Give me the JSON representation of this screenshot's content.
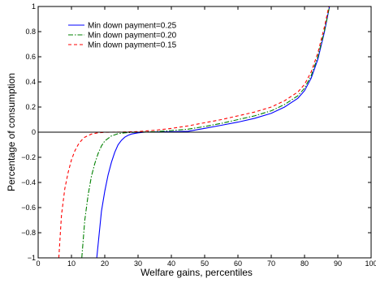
{
  "chart_data": {
    "type": "line",
    "title": "",
    "xlabel": "Welfare gains, percentiles",
    "ylabel": "Percentage of consumption",
    "xlim": [
      0,
      100
    ],
    "ylim": [
      -1,
      1
    ],
    "xticks": [
      0,
      10,
      20,
      30,
      40,
      50,
      60,
      70,
      80,
      90,
      100
    ],
    "yticks": [
      -1,
      -0.8,
      -0.6,
      -0.4,
      -0.2,
      0,
      0.2,
      0.4,
      0.6,
      0.8,
      1
    ],
    "xtick_labels": [
      "0",
      "10",
      "20",
      "30",
      "40",
      "50",
      "60",
      "70",
      "80",
      "90",
      "100"
    ],
    "ytick_labels": [
      "−1",
      "−0.8",
      "−0.6",
      "−0.4",
      "−0.2",
      "0",
      "0.2",
      "0.4",
      "0.6",
      "0.8",
      "1"
    ],
    "grid": false,
    "legend_position": "top-left",
    "zero_line": true,
    "series": [
      {
        "name": "Min down payment=0.25",
        "color": "#0000ff",
        "dash": "solid",
        "x": [
          17.6,
          19,
          20,
          21,
          22,
          23,
          24,
          25,
          26,
          27,
          28,
          30,
          32,
          35,
          40,
          45,
          50,
          55,
          60,
          65,
          70,
          74,
          78,
          80,
          82,
          84,
          86,
          87.5
        ],
        "y": [
          -1.0,
          -0.63,
          -0.47,
          -0.34,
          -0.24,
          -0.16,
          -0.1,
          -0.065,
          -0.04,
          -0.025,
          -0.015,
          -0.005,
          0.0,
          0.002,
          0.004,
          0.007,
          0.03,
          0.055,
          0.08,
          0.11,
          0.15,
          0.2,
          0.27,
          0.33,
          0.43,
          0.58,
          0.8,
          1.0
        ]
      },
      {
        "name": "Min down payment=0.20",
        "color": "#008000",
        "dash": "dashdot",
        "x": [
          13.1,
          14,
          15,
          16,
          17,
          18,
          19,
          20,
          22,
          24,
          26,
          28,
          30,
          35,
          40,
          45,
          50,
          55,
          60,
          65,
          70,
          74,
          78,
          80,
          82,
          84,
          86,
          87.5
        ],
        "y": [
          -1.0,
          -0.7,
          -0.5,
          -0.35,
          -0.25,
          -0.17,
          -0.11,
          -0.07,
          -0.03,
          -0.012,
          -0.005,
          -0.002,
          0.0,
          0.004,
          0.013,
          0.024,
          0.045,
          0.07,
          0.1,
          0.13,
          0.17,
          0.22,
          0.29,
          0.35,
          0.45,
          0.6,
          0.81,
          1.0
        ]
      },
      {
        "name": "Min down payment=0.15",
        "color": "#ff0000",
        "dash": "dashed",
        "x": [
          6.2,
          7,
          8,
          9,
          10,
          11,
          12,
          13,
          14,
          16,
          18,
          20,
          22,
          25,
          30,
          35,
          40,
          45,
          50,
          55,
          60,
          65,
          70,
          74,
          78,
          80,
          82,
          84,
          86,
          87.3
        ],
        "y": [
          -1.0,
          -0.66,
          -0.45,
          -0.32,
          -0.22,
          -0.15,
          -0.1,
          -0.065,
          -0.04,
          -0.015,
          -0.005,
          -0.001,
          0.0,
          0.001,
          0.005,
          0.015,
          0.03,
          0.05,
          0.075,
          0.1,
          0.13,
          0.16,
          0.2,
          0.25,
          0.32,
          0.38,
          0.48,
          0.63,
          0.84,
          1.0
        ]
      }
    ]
  }
}
